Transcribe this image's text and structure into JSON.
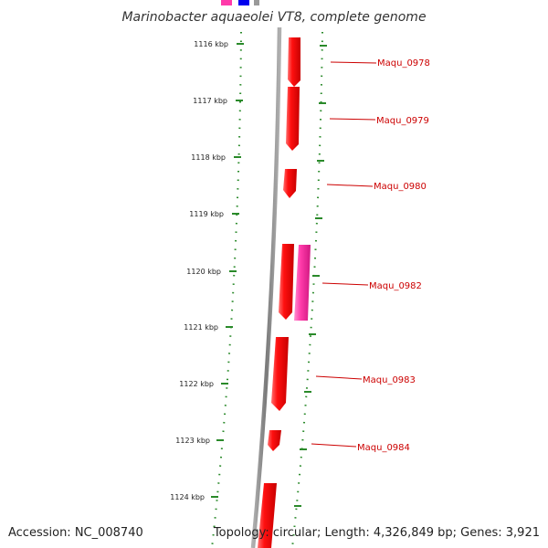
{
  "title": "Marinobacter aquaeolei VT8, complete genome",
  "footer": {
    "accession": "Accession: NC_008740",
    "summary": "Topology: circular; Length: 4,326,849 bp; Genes: 3,921"
  },
  "colors": {
    "gene": "#ff0000",
    "gene_alt": "#ff33aa",
    "tick": "#2a8a2a",
    "label": "#cc0000",
    "backbone": "#888888",
    "top_blue": "#0000ee"
  },
  "ticks": [
    {
      "label": "1116 kbp"
    },
    {
      "label": "1117 kbp"
    },
    {
      "label": "1118 kbp"
    },
    {
      "label": "1119 kbp"
    },
    {
      "label": "1120 kbp"
    },
    {
      "label": "1121 kbp"
    },
    {
      "label": "1122 kbp"
    },
    {
      "label": "1123 kbp"
    },
    {
      "label": "1124 kbp"
    }
  ],
  "gene_labels": [
    {
      "label": "Maqu_0978"
    },
    {
      "label": "Maqu_0979"
    },
    {
      "label": "Maqu_0980"
    },
    {
      "label": "Maqu_0982"
    },
    {
      "label": "Maqu_0983"
    },
    {
      "label": "Maqu_0984"
    }
  ]
}
